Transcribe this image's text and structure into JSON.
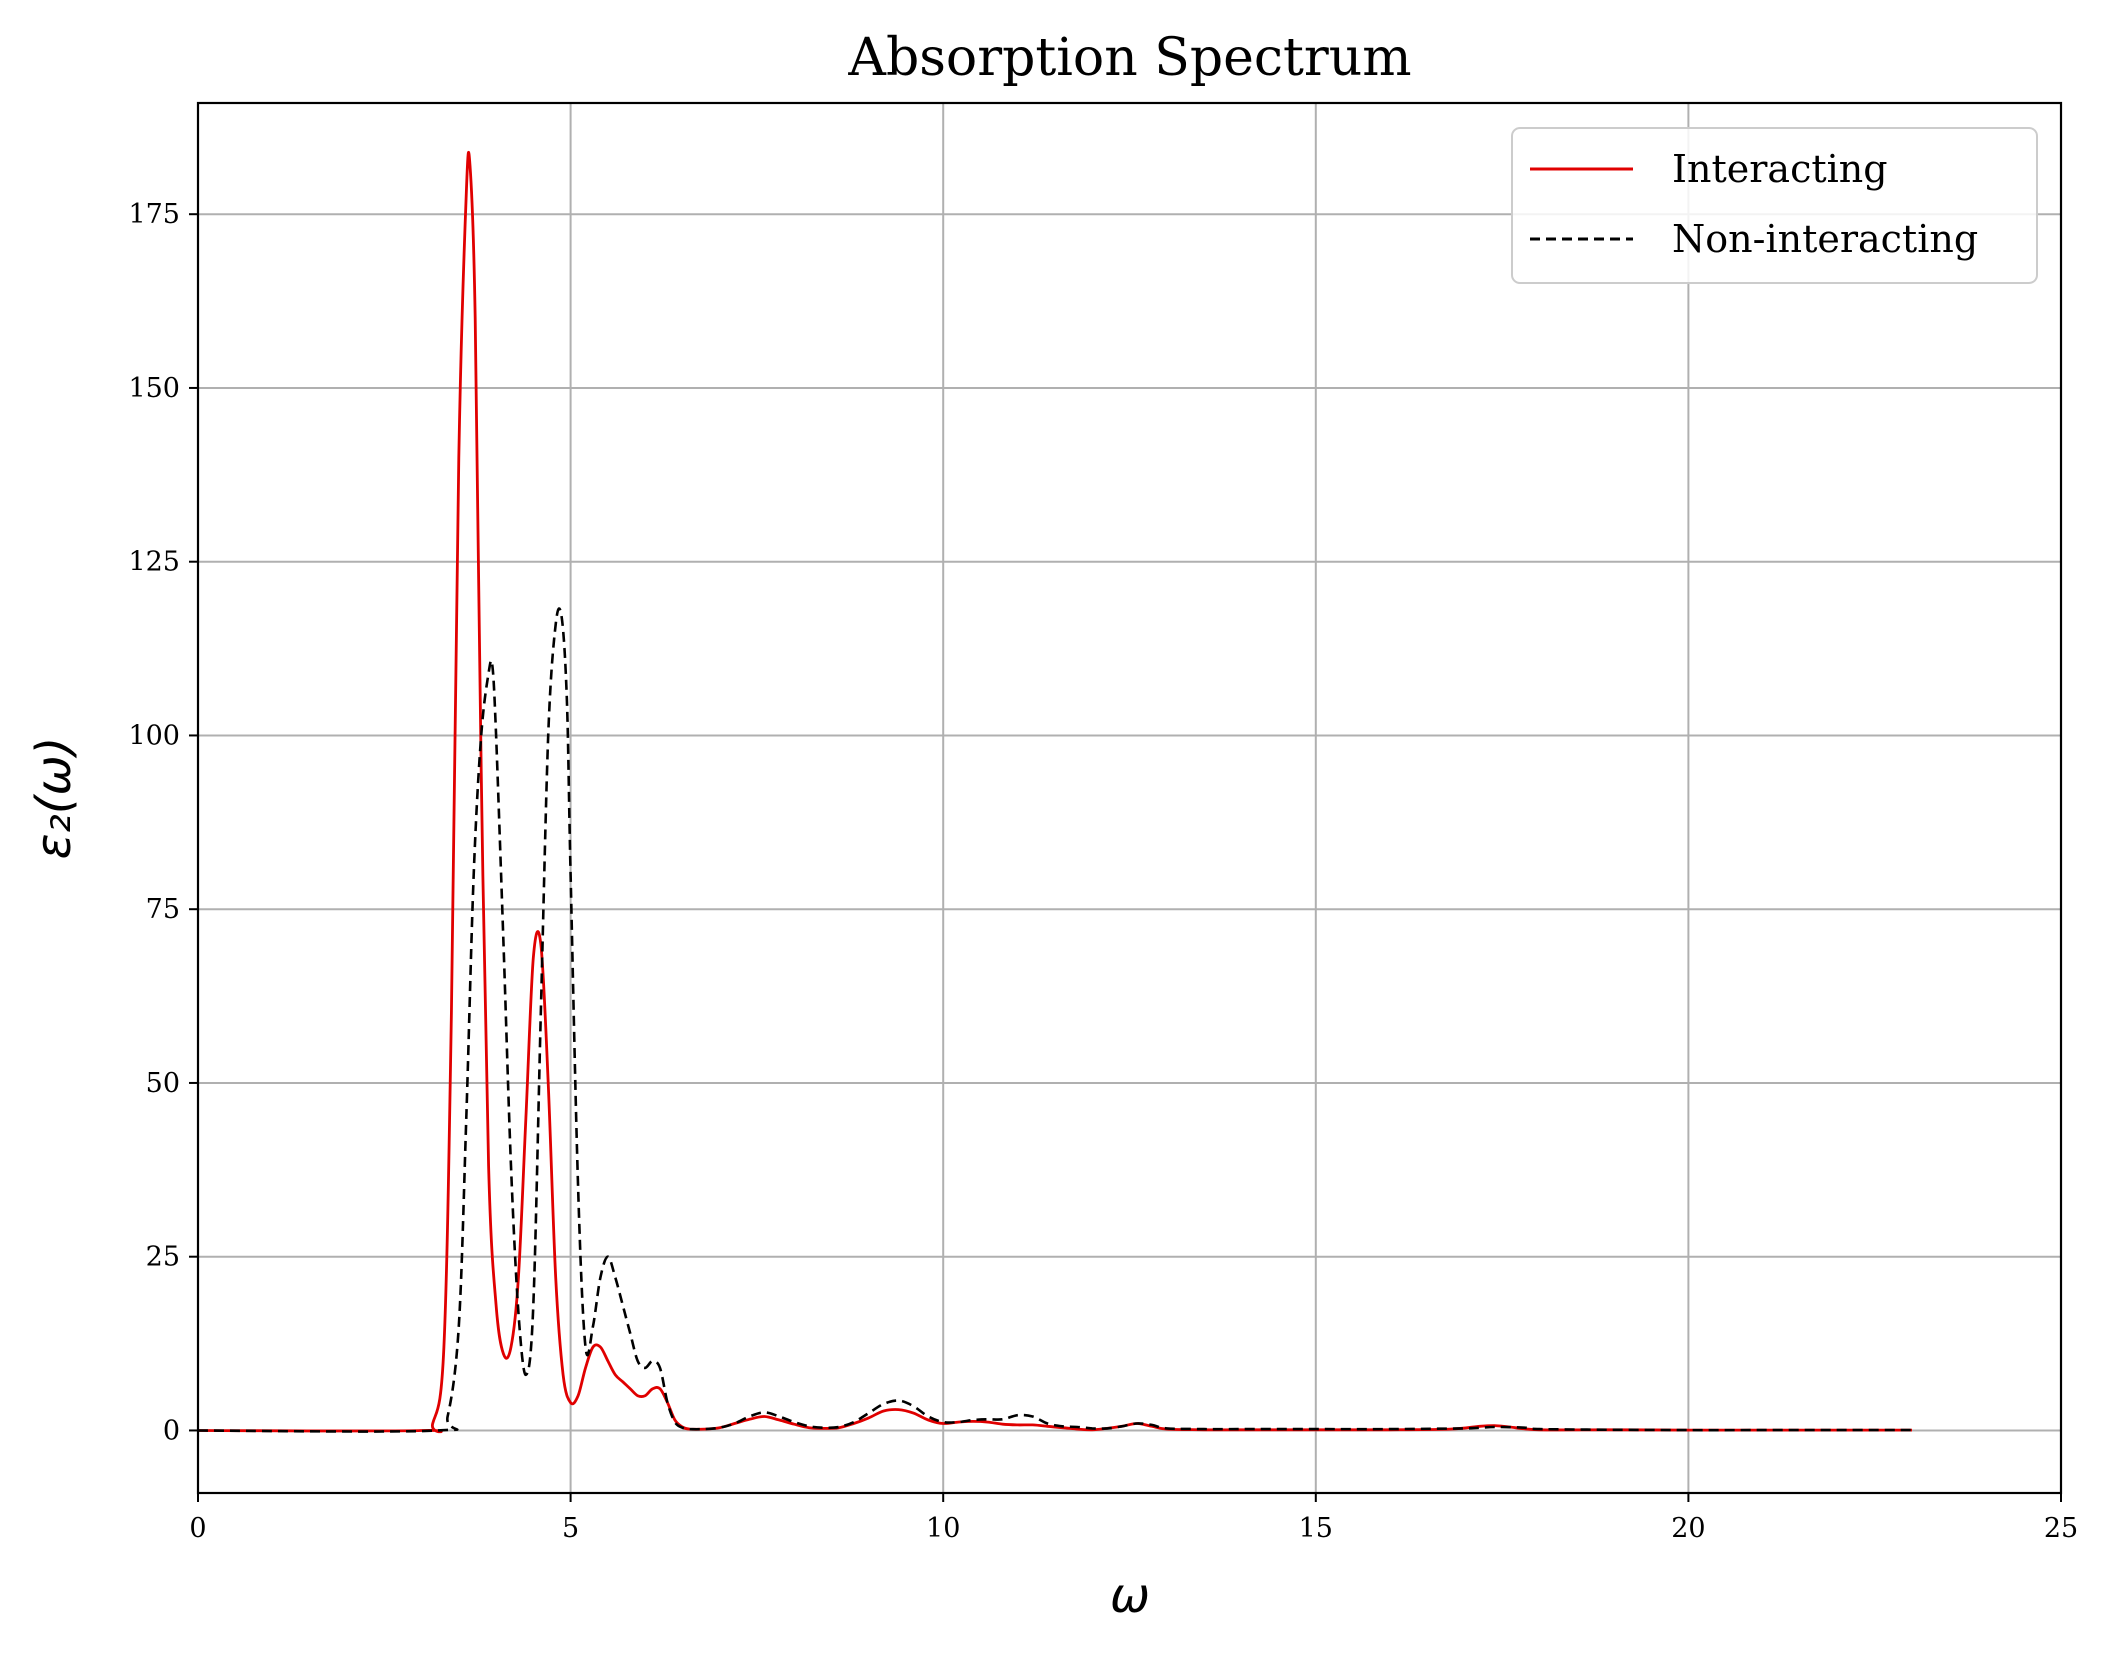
{
  "chart_data": {
    "type": "line",
    "title": "Absorption Spectrum",
    "xlabel": "ω",
    "ylabel": "ε₂(ω)",
    "xlim": [
      0,
      25
    ],
    "ylim": [
      -9,
      191
    ],
    "xticks": [
      0,
      5,
      10,
      15,
      20,
      25
    ],
    "yticks": [
      0,
      25,
      50,
      75,
      100,
      125,
      150,
      175
    ],
    "grid": true,
    "legend_position": "top-right",
    "series": [
      {
        "name": "Interacting",
        "color": "#e00000",
        "style": "solid",
        "x": [
          0,
          3.0,
          3.15,
          3.3,
          3.4,
          3.5,
          3.6,
          3.65,
          3.72,
          3.8,
          3.9,
          4.0,
          4.1,
          4.2,
          4.3,
          4.4,
          4.5,
          4.6,
          4.7,
          4.8,
          4.9,
          5.0,
          5.1,
          5.2,
          5.3,
          5.4,
          5.5,
          5.6,
          5.7,
          5.8,
          5.9,
          6.0,
          6.1,
          6.2,
          6.3,
          6.4,
          6.5,
          6.6,
          6.8,
          7.0,
          7.2,
          7.4,
          7.6,
          7.8,
          8.0,
          8.2,
          8.4,
          8.6,
          8.8,
          9.0,
          9.2,
          9.4,
          9.6,
          9.8,
          10.0,
          10.2,
          10.4,
          10.6,
          10.8,
          11.0,
          11.2,
          11.4,
          11.6,
          11.8,
          12.0,
          12.2,
          12.4,
          12.6,
          12.8,
          13.0,
          13.5,
          14.0,
          15.0,
          16.0,
          16.8,
          17.2,
          17.4,
          17.6,
          18.0,
          19.0,
          20.0,
          21.0,
          22.0,
          23.0
        ],
        "y": [
          0,
          0,
          1,
          12,
          60,
          140,
          178,
          182,
          160,
          95,
          38,
          18,
          11,
          12,
          22,
          45,
          68,
          70,
          50,
          22,
          8,
          4,
          5,
          9,
          12,
          12,
          10,
          8,
          7,
          6,
          5,
          5,
          6,
          6,
          4,
          1.5,
          0.5,
          0.2,
          0.2,
          0.4,
          1.0,
          1.6,
          2.0,
          1.5,
          0.9,
          0.4,
          0.3,
          0.4,
          1.0,
          1.8,
          2.8,
          3.0,
          2.5,
          1.5,
          1.0,
          1.2,
          1.3,
          1.2,
          0.9,
          0.8,
          0.8,
          0.6,
          0.4,
          0.2,
          0.1,
          0.3,
          0.6,
          1.0,
          0.6,
          0.2,
          0.1,
          0.1,
          0.1,
          0.1,
          0.2,
          0.6,
          0.7,
          0.5,
          0.1,
          0.1,
          0.05,
          0.05,
          0.05,
          0.05
        ]
      },
      {
        "name": "Non-interacting",
        "color": "#000000",
        "style": "dashed",
        "x": [
          0,
          3.2,
          3.35,
          3.5,
          3.6,
          3.7,
          3.8,
          3.9,
          3.95,
          4.0,
          4.1,
          4.2,
          4.3,
          4.4,
          4.5,
          4.6,
          4.7,
          4.8,
          4.88,
          4.95,
          5.0,
          5.1,
          5.2,
          5.3,
          5.4,
          5.5,
          5.6,
          5.7,
          5.8,
          5.9,
          6.0,
          6.1,
          6.2,
          6.3,
          6.4,
          6.5,
          6.6,
          6.8,
          7.0,
          7.2,
          7.4,
          7.6,
          7.8,
          8.0,
          8.2,
          8.4,
          8.6,
          8.8,
          9.0,
          9.2,
          9.4,
          9.6,
          9.8,
          10.0,
          10.2,
          10.4,
          10.6,
          10.8,
          11.0,
          11.2,
          11.4,
          11.6,
          11.8,
          12.0,
          12.2,
          12.4,
          12.6,
          12.8,
          13.0,
          13.5,
          14.0,
          15.0,
          16.0,
          17.0,
          17.4,
          17.8,
          18.0,
          19.0,
          20.0,
          21.0,
          22.0,
          23.0
        ],
        "y": [
          0,
          0,
          2,
          15,
          45,
          80,
          100,
          109,
          110,
          100,
          70,
          38,
          17,
          8,
          18,
          60,
          100,
          116,
          117,
          105,
          80,
          35,
          12,
          15,
          22,
          25,
          22,
          18,
          14,
          10,
          9,
          10,
          9,
          4,
          1.2,
          0.4,
          0.2,
          0.2,
          0.4,
          1.0,
          2.0,
          2.6,
          2.0,
          1.2,
          0.6,
          0.4,
          0.5,
          1.2,
          2.5,
          3.8,
          4.3,
          3.5,
          2.0,
          1.2,
          1.2,
          1.5,
          1.6,
          1.6,
          2.2,
          2.0,
          1.0,
          0.6,
          0.5,
          0.3,
          0.3,
          0.6,
          1.0,
          0.8,
          0.3,
          0.2,
          0.2,
          0.2,
          0.2,
          0.3,
          0.5,
          0.4,
          0.2,
          0.1,
          0.05,
          0.05,
          0.05,
          0.05
        ]
      }
    ]
  }
}
